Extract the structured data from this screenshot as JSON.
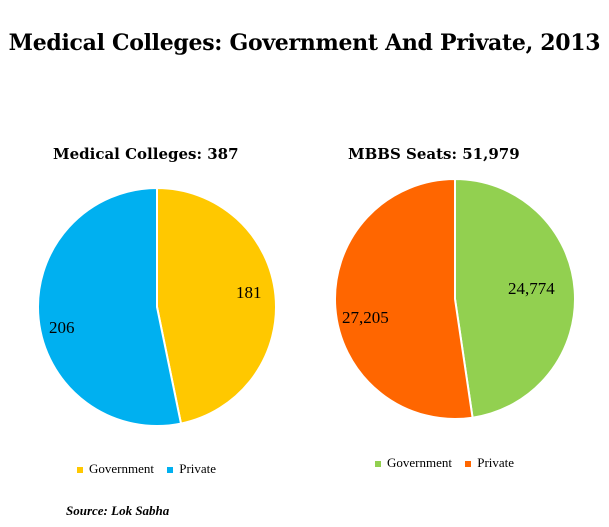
{
  "title": "Medical Colleges: Government And Private, 2013",
  "source": "Source: Lok Sabha",
  "chart_data": [
    {
      "type": "pie",
      "title": "Medical Colleges: 387",
      "slices": [
        {
          "name": "Government",
          "value": 181,
          "label": "181",
          "color": "#ffc800"
        },
        {
          "name": "Private",
          "value": 206,
          "label": "206",
          "color": "#00b0f0"
        }
      ],
      "legend": "bottom"
    },
    {
      "type": "pie",
      "title": "MBBS Seats: 51,979",
      "slices": [
        {
          "name": "Government",
          "value": 24774,
          "label": "24,774",
          "color": "#92d050"
        },
        {
          "name": "Private",
          "value": 27205,
          "label": "27,205",
          "color": "#ff6600"
        }
      ],
      "legend": "bottom"
    }
  ]
}
